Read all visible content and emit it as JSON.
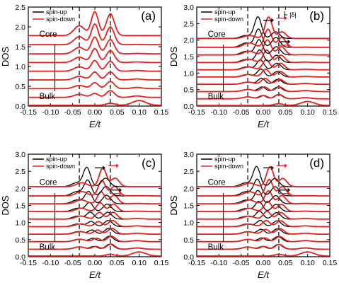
{
  "chart_data": [
    {
      "type": "line",
      "panel_label": "(a)",
      "xlabel": "E/t",
      "ylabel": "DOS",
      "xlim": [
        -0.15,
        0.15
      ],
      "ylim": [
        0,
        2.5
      ],
      "xticks": [
        "-0.15",
        "-0.10",
        "-0.05",
        "0.00",
        "0.05",
        "0.10",
        "0.15"
      ],
      "yticks": [
        "0.0",
        "0.5",
        "1.0",
        "1.5",
        "2.0",
        "2.5"
      ],
      "dashed_lines_x": [
        -0.035,
        0.035
      ],
      "legend": [
        "spin-up",
        "spin-down"
      ],
      "annotations": [
        "Core",
        "Bulk"
      ],
      "offsets": [
        0.0,
        0.22,
        0.44,
        0.66,
        0.88,
        1.1,
        1.32,
        1.55,
        1.78
      ],
      "curve_params": {
        "peak_pos": [
          0.0,
          0.0,
          0.0,
          0.0,
          0.0,
          0.0,
          0.0,
          0.0,
          0.0
        ],
        "peak_amp": [
          0.08,
          0.1,
          0.15,
          0.2,
          0.27,
          0.35,
          0.42,
          0.52,
          0.6
        ],
        "side_amp": [
          0.15,
          0.17,
          0.18,
          0.2,
          0.25,
          0.3,
          0.36,
          0.45,
          0.55
        ],
        "split": 0.0
      },
      "series": [
        {
          "name": "spin-up",
          "color": "#000000"
        },
        {
          "name": "spin-down",
          "color": "#e8201c"
        }
      ]
    },
    {
      "type": "line",
      "panel_label": "(b)",
      "xlabel": "E/t",
      "ylabel": "DOS",
      "xlim": [
        -0.15,
        0.15
      ],
      "ylim": [
        0,
        3.0
      ],
      "xticks": [
        "-0.15",
        "-0.10",
        "-0.05",
        "0.00",
        "0.05",
        "0.10",
        "0.15"
      ],
      "yticks": [
        "0.0",
        "0.5",
        "1.0",
        "1.5",
        "2.0",
        "2.5",
        "3.0"
      ],
      "dashed_lines_x": [
        -0.035,
        0.035
      ],
      "legend": [
        "spin-up",
        "spin-down"
      ],
      "annotations": [
        "Core",
        "Bulk",
        "|δ|"
      ],
      "offsets": [
        0.0,
        0.22,
        0.44,
        0.66,
        0.88,
        1.1,
        1.32,
        1.55,
        1.78,
        2.05
      ],
      "curve_params": {
        "peak_pos": [
          0.0,
          0.0,
          0.0,
          0.0,
          0.0,
          0.0,
          0.0,
          0.0,
          0.0,
          0.0
        ],
        "peak_amp": [
          0.08,
          0.1,
          0.14,
          0.18,
          0.24,
          0.3,
          0.38,
          0.46,
          0.55,
          0.65
        ],
        "side_amp": [
          0.12,
          0.13,
          0.14,
          0.15,
          0.17,
          0.2,
          0.22,
          0.25,
          0.3,
          0.2
        ],
        "split": 0.012
      },
      "series": [
        {
          "name": "spin-up",
          "color": "#000000"
        },
        {
          "name": "spin-down",
          "color": "#e8201c"
        }
      ]
    },
    {
      "type": "line",
      "panel_label": "(c)",
      "xlabel": "E/t",
      "ylabel": "DOS",
      "xlim": [
        -0.15,
        0.15
      ],
      "ylim": [
        0,
        3.0
      ],
      "xticks": [
        "-0.15",
        "-0.10",
        "-0.05",
        "0.00",
        "0.05",
        "0.10",
        "0.15"
      ],
      "yticks": [
        "0.0",
        "0.5",
        "1.0",
        "1.5",
        "2.0",
        "2.5",
        "3.0"
      ],
      "dashed_lines_x": [
        -0.035,
        0.035
      ],
      "legend": [
        "spin-up",
        "spin-down"
      ],
      "annotations": [
        "Core",
        "Bulk"
      ],
      "offsets": [
        0.0,
        0.22,
        0.44,
        0.66,
        0.88,
        1.1,
        1.32,
        1.55,
        1.78,
        2.05
      ],
      "curve_params": {
        "peak_pos": [
          0.0,
          0.0,
          0.0,
          0.0,
          0.0,
          0.0,
          0.0,
          0.0,
          0.0,
          0.0
        ],
        "peak_amp": [
          0.06,
          0.08,
          0.1,
          0.12,
          0.15,
          0.2,
          0.26,
          0.35,
          0.45,
          0.55
        ],
        "side_amp": [
          0.14,
          0.15,
          0.16,
          0.17,
          0.18,
          0.2,
          0.22,
          0.25,
          0.28,
          0.25
        ],
        "split": 0.018
      },
      "series": [
        {
          "name": "spin-up",
          "color": "#000000"
        },
        {
          "name": "spin-down",
          "color": "#e8201c"
        }
      ]
    },
    {
      "type": "line",
      "panel_label": "(d)",
      "xlabel": "E/t",
      "ylabel": "DOS",
      "xlim": [
        -0.15,
        0.15
      ],
      "ylim": [
        0,
        3.0
      ],
      "xticks": [
        "-0.15",
        "-0.10",
        "-0.05",
        "0.00",
        "0.05",
        "0.10",
        "0.15"
      ],
      "yticks": [
        "0.0",
        "0.5",
        "1.0",
        "1.5",
        "2.0",
        "2.5",
        "3.0"
      ],
      "dashed_lines_x": [
        -0.035,
        0.035
      ],
      "legend": [
        "spin-up",
        "spin-down"
      ],
      "annotations": [
        "Core",
        "Bulk"
      ],
      "offsets": [
        0.0,
        0.22,
        0.44,
        0.66,
        0.88,
        1.1,
        1.32,
        1.55,
        1.78,
        2.05
      ],
      "curve_params": {
        "peak_pos": [
          0.0,
          0.0,
          0.0,
          0.0,
          0.0,
          0.0,
          0.0,
          0.0,
          0.0,
          0.0
        ],
        "peak_amp": [
          0.06,
          0.08,
          0.11,
          0.14,
          0.18,
          0.23,
          0.3,
          0.38,
          0.48,
          0.58
        ],
        "side_amp": [
          0.13,
          0.14,
          0.15,
          0.16,
          0.17,
          0.19,
          0.21,
          0.24,
          0.27,
          0.24
        ],
        "split": 0.015
      },
      "series": [
        {
          "name": "spin-up",
          "color": "#000000"
        },
        {
          "name": "spin-down",
          "color": "#e8201c"
        }
      ]
    }
  ]
}
